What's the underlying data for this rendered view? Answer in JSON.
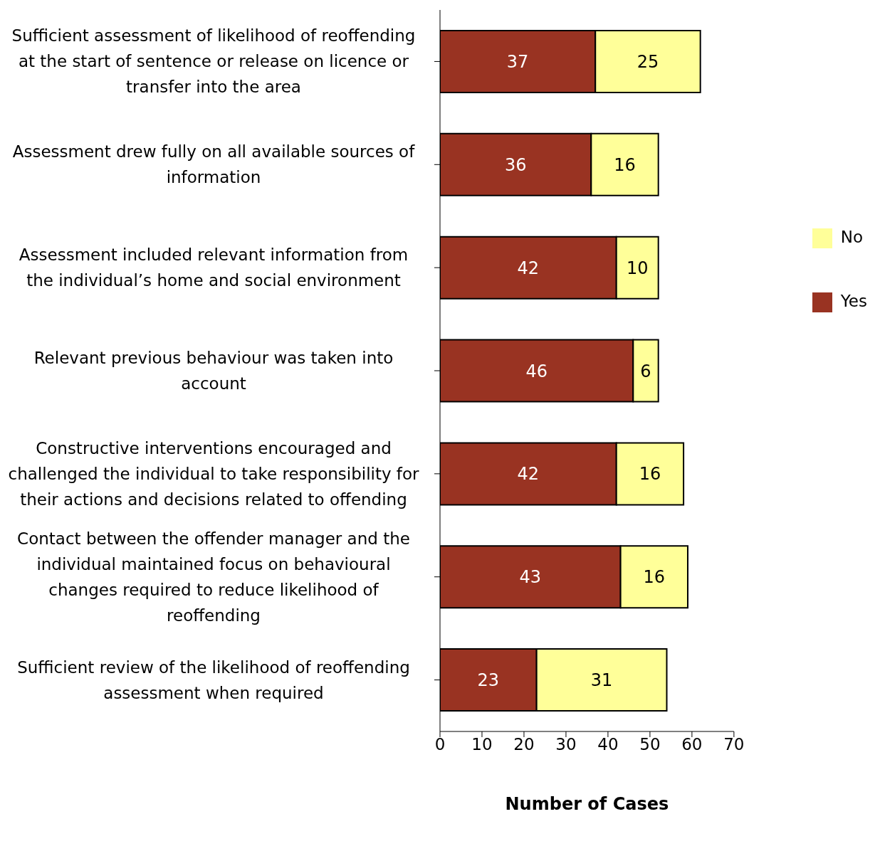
{
  "chart_data": {
    "type": "bar",
    "orientation": "horizontal",
    "stacked": true,
    "xlabel": "Number of Cases",
    "categories": [
      "Sufficient assessment of likelihood of reoffending at the start of sentence or release on licence or transfer into the area",
      "Assessment drew fully on all available sources of information",
      "Assessment included relevant information from the individual’s home and social environment",
      "Relevant previous behaviour was taken into account",
      "Constructive interventions encouraged and challenged the individual to take responsibility for their actions and decisions related to offending",
      "Contact between the offender manager and the individual maintained focus on behavioural changes required to reduce likelihood of reoffending",
      "Sufficient review of the likelihood of reoffending assessment when required"
    ],
    "series": [
      {
        "name": "Yes",
        "color": "#993322",
        "values": [
          37,
          36,
          42,
          46,
          42,
          43,
          23
        ]
      },
      {
        "name": "No",
        "color": "#ffff99",
        "values": [
          25,
          16,
          10,
          6,
          16,
          16,
          31
        ]
      }
    ],
    "xlim": [
      0,
      70
    ],
    "xticks": [
      0,
      10,
      20,
      30,
      40,
      50,
      60,
      70
    ],
    "data_labels": true,
    "grid": false,
    "legend": "right"
  }
}
